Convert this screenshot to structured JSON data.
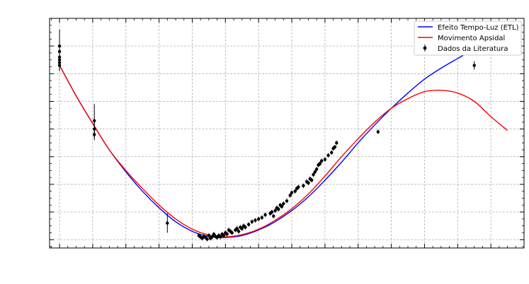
{
  "chart_data": {
    "type": "scatter",
    "title": "",
    "xlabel": "",
    "ylabel": "",
    "xlim": [
      -0.3,
      14.0
    ],
    "ylim": [
      -0.3,
      8.0
    ],
    "grid": true,
    "legend_position": "top-right",
    "legend": [
      {
        "label": "Efeito Tempo-Luz (ETL)",
        "kind": "line",
        "color": "#0000ff"
      },
      {
        "label": "Movimento Apsidal",
        "kind": "line",
        "color": "#ff0000"
      },
      {
        "label": "Dados da Literatura",
        "kind": "errorbar",
        "color": "#000000"
      }
    ],
    "series": [
      {
        "name": "Efeito Tempo-Luz (ETL)",
        "kind": "line",
        "color": "#0000ff",
        "x": [
          0,
          0.5,
          1,
          1.5,
          2,
          2.5,
          3,
          3.5,
          4,
          4.5,
          5,
          5.5,
          6,
          6.5,
          7,
          7.5,
          8,
          8.5,
          9,
          9.5,
          10,
          10.5,
          11,
          11.5,
          12,
          12.5,
          13,
          13.5
        ],
        "y": [
          6.3,
          5.2,
          4.2,
          3.25,
          2.45,
          1.75,
          1.15,
          0.65,
          0.3,
          0.12,
          0.08,
          0.15,
          0.35,
          0.65,
          1.05,
          1.55,
          2.15,
          2.8,
          3.5,
          4.15,
          4.75,
          5.3,
          5.8,
          6.2,
          6.55,
          6.9,
          7.2,
          7.45
        ]
      },
      {
        "name": "Movimento Apsidal",
        "kind": "line",
        "color": "#ff0000",
        "x": [
          0,
          0.5,
          1,
          1.5,
          2,
          2.5,
          3,
          3.5,
          4,
          4.5,
          5,
          5.5,
          6,
          6.5,
          7,
          7.5,
          8,
          8.5,
          9,
          9.5,
          10,
          10.5,
          11,
          11.5,
          12,
          12.5,
          13,
          13.5
        ],
        "y": [
          6.3,
          5.2,
          4.2,
          3.25,
          2.5,
          1.85,
          1.25,
          0.75,
          0.38,
          0.17,
          0.1,
          0.18,
          0.38,
          0.7,
          1.12,
          1.65,
          2.3,
          3.0,
          3.65,
          4.25,
          4.75,
          5.1,
          5.35,
          5.4,
          5.3,
          5.0,
          4.45,
          3.95
        ]
      }
    ],
    "points": {
      "name": "Dados da Literatura",
      "x": [
        0.0,
        0.0,
        0.0,
        0.0,
        0.0,
        0.0,
        1.05,
        1.05,
        1.05,
        3.25,
        4.2,
        4.25,
        4.3,
        4.35,
        4.4,
        4.45,
        4.5,
        4.55,
        4.6,
        4.65,
        4.7,
        4.75,
        4.8,
        4.85,
        4.9,
        4.95,
        5.0,
        5.05,
        5.1,
        5.15,
        5.2,
        5.3,
        5.35,
        5.4,
        5.45,
        5.5,
        5.55,
        5.6,
        5.7,
        5.8,
        5.9,
        6.0,
        6.1,
        6.2,
        6.35,
        6.4,
        6.45,
        6.5,
        6.55,
        6.6,
        6.65,
        6.7,
        6.75,
        6.85,
        6.95,
        7.0,
        7.1,
        7.15,
        7.2,
        7.35,
        7.45,
        7.5,
        7.55,
        7.6,
        7.65,
        7.7,
        7.75,
        7.8,
        7.85,
        7.9,
        8.0,
        8.1,
        8.2,
        8.25,
        8.3,
        8.35,
        9.6,
        12.5
      ],
      "y": [
        7.0,
        6.8,
        6.6,
        6.5,
        6.4,
        6.3,
        4.3,
        4.0,
        3.8,
        0.6,
        0.15,
        0.1,
        0.05,
        0.12,
        0.08,
        0.02,
        0.15,
        0.05,
        0.1,
        0.2,
        0.12,
        0.08,
        0.15,
        0.1,
        0.2,
        0.15,
        0.25,
        0.2,
        0.35,
        0.3,
        0.25,
        0.35,
        0.4,
        0.3,
        0.45,
        0.4,
        0.5,
        0.45,
        0.55,
        0.65,
        0.7,
        0.75,
        0.8,
        0.9,
        0.95,
        1.0,
        0.85,
        1.05,
        1.15,
        1.1,
        1.25,
        1.2,
        1.3,
        1.4,
        1.6,
        1.7,
        1.75,
        1.85,
        1.9,
        1.95,
        2.1,
        2.05,
        2.2,
        2.15,
        2.35,
        2.45,
        2.55,
        2.7,
        2.75,
        2.85,
        2.9,
        3.05,
        3.15,
        3.3,
        3.35,
        3.5,
        3.9,
        6.3
      ],
      "yerr": [
        0.6,
        0.1,
        0.1,
        0.1,
        0.3,
        0.2,
        0.6,
        0.3,
        0.2,
        0.35,
        0.08,
        0.08,
        0.08,
        0.08,
        0.08,
        0.08,
        0.08,
        0.08,
        0.08,
        0.08,
        0.08,
        0.08,
        0.08,
        0.08,
        0.08,
        0.08,
        0.08,
        0.08,
        0.08,
        0.08,
        0.08,
        0.08,
        0.1,
        0.08,
        0.08,
        0.08,
        0.08,
        0.08,
        0.08,
        0.08,
        0.08,
        0.08,
        0.08,
        0.08,
        0.08,
        0.08,
        0.08,
        0.08,
        0.08,
        0.08,
        0.08,
        0.08,
        0.08,
        0.08,
        0.08,
        0.08,
        0.08,
        0.08,
        0.08,
        0.08,
        0.08,
        0.08,
        0.08,
        0.08,
        0.08,
        0.08,
        0.08,
        0.08,
        0.08,
        0.08,
        0.08,
        0.08,
        0.08,
        0.08,
        0.08,
        0.08,
        0.08,
        0.15
      ]
    },
    "x_major_ticks": [
      0,
      1,
      2,
      3,
      4,
      5,
      6,
      7,
      8,
      9,
      10,
      11,
      12,
      13,
      14
    ],
    "y_major_ticks": [
      0,
      1,
      2,
      3,
      4,
      5,
      6,
      7
    ]
  }
}
